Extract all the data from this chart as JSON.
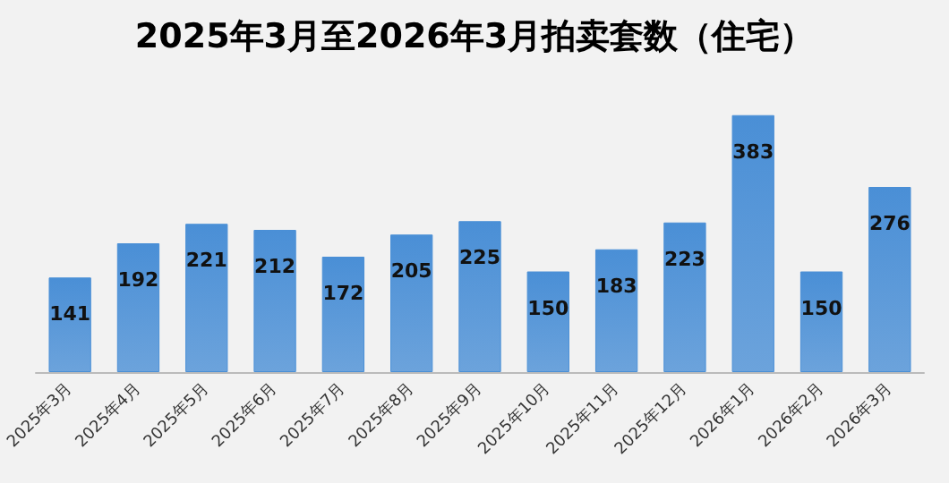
{
  "chart_data": {
    "type": "bar",
    "title": "2025年3月至2026年3月拍卖套数（住宅）",
    "categories": [
      "2025年3月",
      "2025年4月",
      "2025年5月",
      "2025年6月",
      "2025年7月",
      "2025年8月",
      "2025年9月",
      "2025年10月",
      "2025年11月",
      "2025年12月",
      "2026年1月",
      "2026年2月",
      "2026年3月"
    ],
    "values": [
      141,
      192,
      221,
      212,
      172,
      205,
      225,
      150,
      183,
      223,
      383,
      150,
      276
    ],
    "color": "#4a8fd6",
    "data_labels": true,
    "tick_labels": "x"
  }
}
